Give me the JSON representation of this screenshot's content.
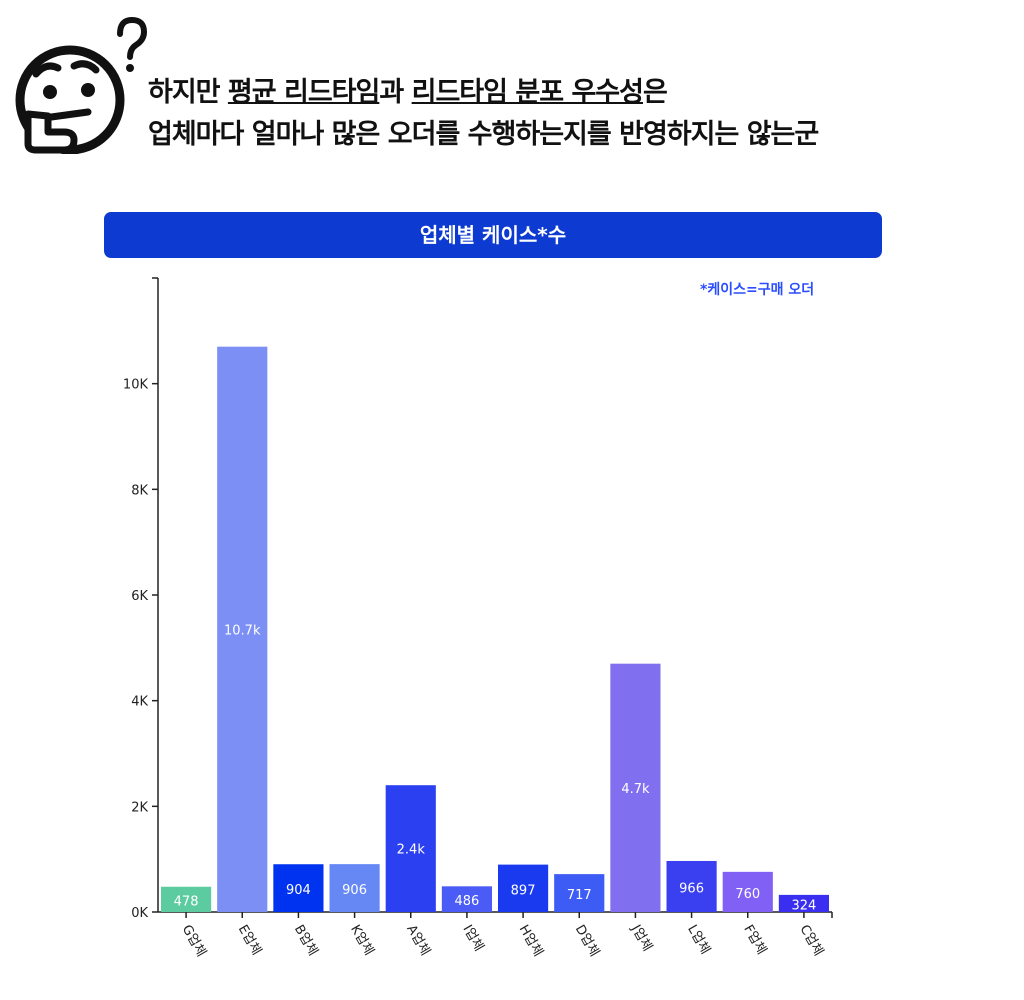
{
  "header": {
    "line1_parts": [
      {
        "text": "하지만 ",
        "underline": false
      },
      {
        "text": "평균 리드타임",
        "underline": true
      },
      {
        "text": "과 ",
        "underline": false
      },
      {
        "text": "리드타임 분포 우수성",
        "underline": true
      },
      {
        "text": "은",
        "underline": false
      }
    ],
    "line2": "업체마다 얼마나 많은 오더를 수행하는지를 반영하지는 않는군",
    "icon": "thinking-face-icon"
  },
  "chart_data": {
    "type": "bar",
    "title": "업체별 케이스*수",
    "annotation": "*케이스=구매 오더",
    "categories": [
      "G업체",
      "E업체",
      "B업체",
      "K업체",
      "A업체",
      "I업체",
      "H업체",
      "D업체",
      "J업체",
      "L업체",
      "F업체",
      "C업체"
    ],
    "values": [
      478,
      10700,
      904,
      906,
      2400,
      486,
      897,
      717,
      4700,
      966,
      760,
      324
    ],
    "data_labels": [
      "478",
      "10.7k",
      "904",
      "906",
      "2.4k",
      "486",
      "897",
      "717",
      "4.7k",
      "966",
      "760",
      "324"
    ],
    "colors": [
      "#5ccba0",
      "#7b8ff5",
      "#0033f0",
      "#6688f5",
      "#2b40f0",
      "#4a5cf5",
      "#1a3af0",
      "#3d5cf5",
      "#8070f0",
      "#3a3ff0",
      "#8060f5",
      "#3a2ff0"
    ],
    "yticks": [
      0,
      2000,
      4000,
      6000,
      8000,
      10000
    ],
    "ytick_labels": [
      "0K",
      "2K",
      "4K",
      "6K",
      "8K",
      "10K"
    ],
    "ylim": [
      0,
      12000
    ],
    "grid": false
  }
}
